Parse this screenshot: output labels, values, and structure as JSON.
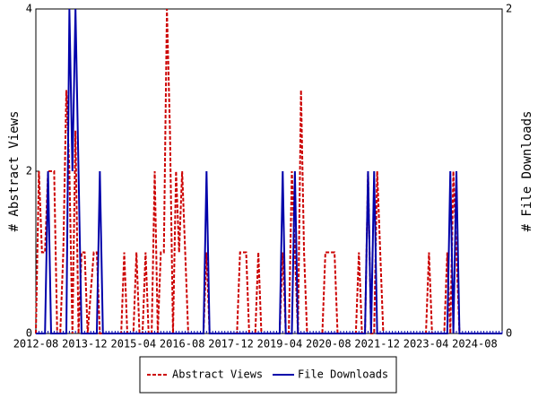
{
  "chart_data": {
    "type": "line",
    "y_label": "# Abstract Views",
    "y2_label": "# File Downloads",
    "categories": [
      "2012-08",
      null,
      null,
      null,
      null,
      null,
      null,
      null,
      null,
      null,
      null,
      null,
      null,
      null,
      null,
      null,
      "2013-12",
      null,
      null,
      null,
      null,
      null,
      null,
      null,
      null,
      null,
      null,
      null,
      null,
      null,
      null,
      null,
      "2015-04",
      null,
      null,
      null,
      null,
      null,
      null,
      null,
      null,
      null,
      null,
      null,
      null,
      null,
      null,
      null,
      "2016-08",
      null,
      null,
      null,
      null,
      null,
      null,
      null,
      null,
      null,
      null,
      null,
      null,
      null,
      null,
      null,
      "2017-12",
      null,
      null,
      null,
      null,
      null,
      null,
      null,
      null,
      null,
      null,
      null,
      null,
      null,
      null,
      null,
      "2019-04",
      null,
      null,
      null,
      null,
      null,
      null,
      null,
      null,
      null,
      null,
      null,
      null,
      null,
      null,
      null,
      "2020-08",
      null,
      null,
      null,
      null,
      null,
      null,
      null,
      null,
      null,
      null,
      null,
      null,
      null,
      null,
      null,
      "2021-12",
      null,
      null,
      null,
      null,
      null,
      null,
      null,
      null,
      null,
      null,
      null,
      null,
      null,
      null,
      null,
      "2023-04",
      null,
      null,
      null,
      null,
      null,
      null,
      null,
      null,
      null,
      null,
      null,
      null,
      null,
      null,
      null,
      "2024-08",
      null,
      null,
      null,
      null,
      null,
      null,
      null,
      null,
      null
    ],
    "series": [
      {
        "name": "Abstract Views",
        "color": "#cc0000",
        "dash": true,
        "values": [
          0,
          2,
          1,
          1,
          2,
          2,
          2,
          0,
          0,
          1,
          3,
          2,
          0,
          2.5,
          0,
          1,
          1,
          0,
          0.5,
          1,
          1,
          0,
          0,
          0,
          0,
          0,
          0,
          0,
          0,
          1,
          0,
          0,
          0,
          1,
          0,
          0,
          1,
          0,
          0,
          2,
          0,
          1,
          1,
          4,
          2.5,
          0,
          2,
          1,
          2,
          1,
          0,
          0,
          0,
          0,
          0,
          0,
          1,
          0,
          0,
          0,
          0,
          0,
          0,
          0,
          0,
          0,
          0,
          1,
          1,
          1,
          0,
          0,
          0,
          1,
          0,
          0,
          0,
          0,
          0,
          0,
          0,
          1,
          0,
          0,
          2,
          1,
          0,
          3,
          1,
          0,
          0,
          0,
          0,
          0,
          0,
          1,
          1,
          1,
          1,
          0,
          0,
          0,
          0,
          0,
          0,
          0,
          1,
          0,
          0,
          2,
          0,
          0,
          2,
          1,
          0,
          0,
          0,
          0,
          0,
          0,
          0,
          0,
          0,
          0,
          0,
          0,
          0,
          0,
          0,
          1,
          0,
          0,
          0,
          0,
          0,
          1,
          0,
          2,
          1,
          0,
          0,
          0,
          0,
          0,
          0,
          0,
          0,
          0,
          0,
          0,
          0,
          0,
          0,
          0
        ]
      },
      {
        "name": "File Downloads",
        "color": "#0000aa",
        "axis": "y2",
        "values": [
          0,
          0,
          0,
          0,
          1,
          0,
          0,
          0,
          0,
          0,
          0,
          2,
          1,
          2,
          1,
          0,
          0,
          0,
          0,
          0,
          0,
          1,
          0,
          0,
          0,
          0,
          0,
          0,
          0,
          0,
          0,
          0,
          0,
          0,
          0,
          0,
          0,
          0,
          0,
          0,
          0,
          0,
          0,
          0,
          0,
          0,
          0,
          0,
          0,
          0,
          0,
          0,
          0,
          0,
          0,
          0,
          1,
          0,
          0,
          0,
          0,
          0,
          0,
          0,
          0,
          0,
          0,
          0,
          0,
          0,
          0,
          0,
          0,
          0,
          0,
          0,
          0,
          0,
          0,
          0,
          0,
          1,
          0,
          0,
          0,
          1,
          0,
          0,
          0,
          0,
          0,
          0,
          0,
          0,
          0,
          0,
          0,
          0,
          0,
          0,
          0,
          0,
          0,
          0,
          0,
          0,
          0,
          0,
          0,
          1,
          0,
          1,
          0,
          0,
          0,
          0,
          0,
          0,
          0,
          0,
          0,
          0,
          0,
          0,
          0,
          0,
          0,
          0,
          0,
          0,
          0,
          0,
          0,
          0,
          0,
          0,
          1,
          0,
          1,
          0,
          0,
          0,
          0,
          0,
          0,
          0,
          0,
          0,
          0,
          0,
          0,
          0,
          0,
          0
        ]
      }
    ],
    "ylim": [
      0,
      4
    ],
    "yticks": [
      0,
      2,
      4
    ],
    "y2lim": [
      0,
      2
    ],
    "y2ticks": [
      0,
      2
    ],
    "legend": "bottom"
  }
}
